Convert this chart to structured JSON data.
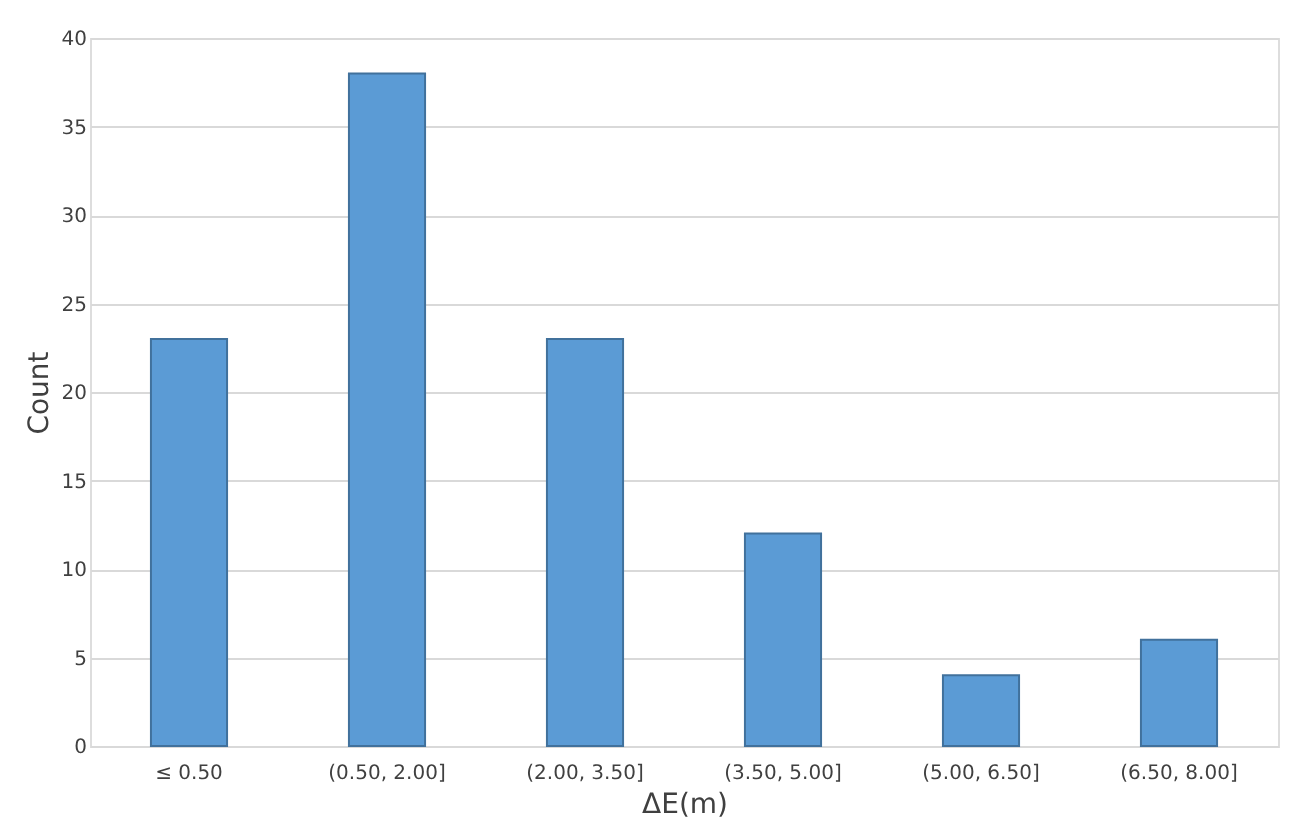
{
  "chart_data": {
    "type": "bar",
    "xlabel": "ΔE(m)",
    "ylabel": "Count",
    "categories": [
      "≤ 0.50",
      "(0.50, 2.00]",
      "(2.00, 3.50]",
      "(3.50, 5.00]",
      "(5.00, 6.50]",
      "(6.50, 8.00]"
    ],
    "values": [
      23,
      38,
      23,
      12,
      4,
      6
    ],
    "color": "#5b9bd5",
    "ylim": [
      0,
      40
    ],
    "yticks": [
      0,
      5,
      10,
      15,
      20,
      25,
      30,
      35,
      40
    ],
    "grid": "y"
  }
}
